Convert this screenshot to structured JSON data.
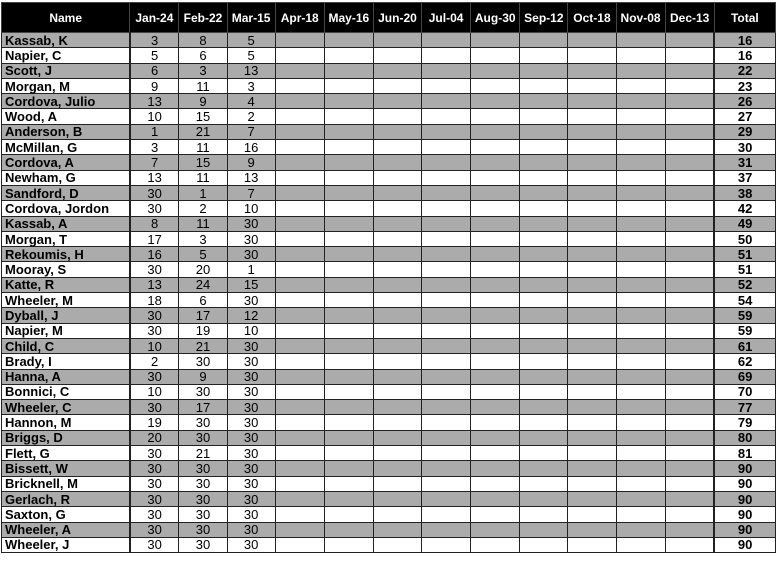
{
  "columns": [
    "Name",
    "Jan-24",
    "Feb-22",
    "Mar-15",
    "Apr-18",
    "May-16",
    "Jun-20",
    "Jul-04",
    "Aug-30",
    "Sep-12",
    "Oct-18",
    "Nov-08",
    "Dec-13",
    "Total"
  ],
  "rows": [
    {
      "name": "Kassab, K",
      "scores": [
        3,
        8,
        5
      ],
      "total": 16
    },
    {
      "name": "Napier, C",
      "scores": [
        5,
        6,
        5
      ],
      "total": 16
    },
    {
      "name": "Scott, J",
      "scores": [
        6,
        3,
        13
      ],
      "total": 22
    },
    {
      "name": "Morgan, M",
      "scores": [
        9,
        11,
        3
      ],
      "total": 23
    },
    {
      "name": "Cordova, Julio",
      "scores": [
        13,
        9,
        4
      ],
      "total": 26
    },
    {
      "name": "Wood, A",
      "scores": [
        10,
        15,
        2
      ],
      "total": 27
    },
    {
      "name": "Anderson, B",
      "scores": [
        1,
        21,
        7
      ],
      "total": 29
    },
    {
      "name": "McMillan, G",
      "scores": [
        3,
        11,
        16
      ],
      "total": 30
    },
    {
      "name": "Cordova, A",
      "scores": [
        7,
        15,
        9
      ],
      "total": 31
    },
    {
      "name": "Newham, G",
      "scores": [
        13,
        11,
        13
      ],
      "total": 37
    },
    {
      "name": "Sandford, D",
      "scores": [
        30,
        1,
        7
      ],
      "total": 38
    },
    {
      "name": "Cordova, Jordon",
      "scores": [
        30,
        2,
        10
      ],
      "total": 42
    },
    {
      "name": "Kassab, A",
      "scores": [
        8,
        11,
        30
      ],
      "total": 49
    },
    {
      "name": "Morgan, T",
      "scores": [
        17,
        3,
        30
      ],
      "total": 50
    },
    {
      "name": "Rekoumis, H",
      "scores": [
        16,
        5,
        30
      ],
      "total": 51
    },
    {
      "name": "Mooray, S",
      "scores": [
        30,
        20,
        1
      ],
      "total": 51
    },
    {
      "name": "Katte, R",
      "scores": [
        13,
        24,
        15
      ],
      "total": 52
    },
    {
      "name": "Wheeler, M",
      "scores": [
        18,
        6,
        30
      ],
      "total": 54
    },
    {
      "name": "Dyball, J",
      "scores": [
        30,
        17,
        12
      ],
      "total": 59
    },
    {
      "name": "Napier, M",
      "scores": [
        30,
        19,
        10
      ],
      "total": 59
    },
    {
      "name": "Child, C",
      "scores": [
        10,
        21,
        30
      ],
      "total": 61
    },
    {
      "name": "Brady, I",
      "scores": [
        2,
        30,
        30
      ],
      "total": 62
    },
    {
      "name": "Hanna, A",
      "scores": [
        30,
        9,
        30
      ],
      "total": 69
    },
    {
      "name": "Bonnici, C",
      "scores": [
        10,
        30,
        30
      ],
      "total": 70
    },
    {
      "name": "Wheeler, C",
      "scores": [
        30,
        17,
        30
      ],
      "total": 77
    },
    {
      "name": "Hannon, M",
      "scores": [
        19,
        30,
        30
      ],
      "total": 79
    },
    {
      "name": "Briggs, D",
      "scores": [
        20,
        30,
        30
      ],
      "total": 80
    },
    {
      "name": "Flett, G",
      "scores": [
        30,
        21,
        30
      ],
      "total": 81
    },
    {
      "name": "Bissett, W",
      "scores": [
        30,
        30,
        30
      ],
      "total": 90
    },
    {
      "name": "Bricknell, M",
      "scores": [
        30,
        30,
        30
      ],
      "total": 90
    },
    {
      "name": "Gerlach, R",
      "scores": [
        30,
        30,
        30
      ],
      "total": 90
    },
    {
      "name": "Saxton, G",
      "scores": [
        30,
        30,
        30
      ],
      "total": 90
    },
    {
      "name": "Wheeler, A",
      "scores": [
        30,
        30,
        30
      ],
      "total": 90
    },
    {
      "name": "Wheeler, J",
      "scores": [
        30,
        30,
        30
      ],
      "total": 90
    }
  ],
  "colors": {
    "header_bg": "#000000",
    "header_text": "#ffffff",
    "stripe": "#ababab"
  }
}
